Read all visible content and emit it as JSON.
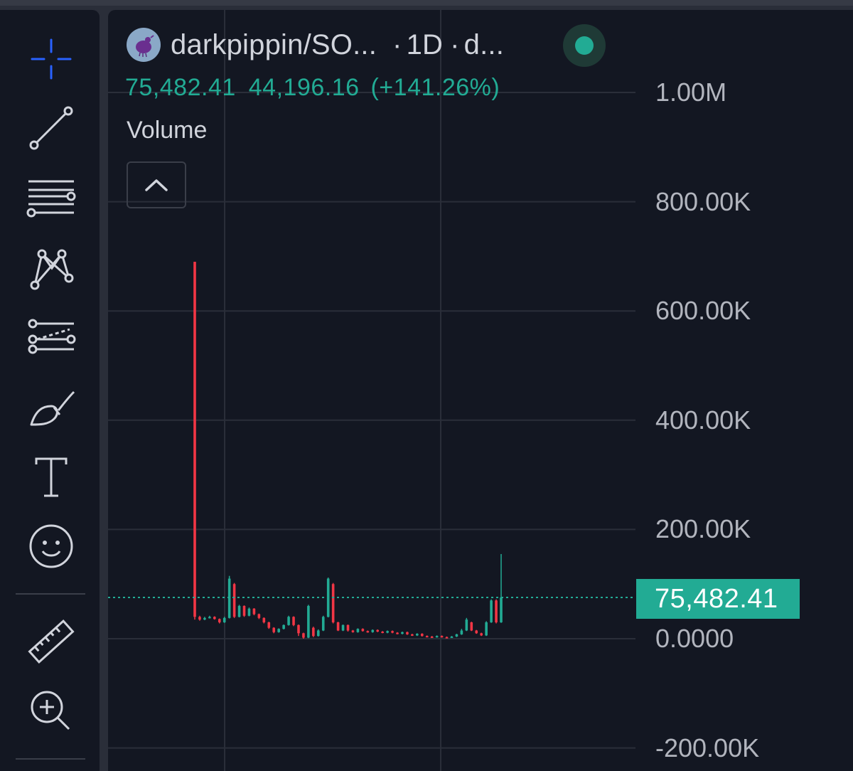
{
  "symbol": {
    "name": "darkpippin/SO...",
    "interval": "1D",
    "exchange": "d...",
    "logo_icon": "pippin-token-logo",
    "live_status": "live"
  },
  "legend": {
    "last_value": "75,482.41",
    "change": "44,196.16",
    "change_pct": "(+141.26%)",
    "indicator": "Volume"
  },
  "price_scale": {
    "labels": [
      "1.00M",
      "800.00K",
      "600.00K",
      "400.00K",
      "200.00K",
      "0.0000",
      "-200.00K"
    ],
    "last_price_tag": "75,482.41"
  },
  "toolbar": {
    "tools": [
      "crosshair-icon",
      "trend-line-icon",
      "horizontal-lines-icon",
      "pattern-icon",
      "forecast-icon",
      "brush-icon",
      "text-icon",
      "emoji-icon",
      "ruler-icon",
      "zoom-in-icon"
    ]
  },
  "colors": {
    "background": "#131722",
    "up": "#22ab94",
    "down": "#f23645",
    "accent": "#2962ff",
    "text": "#d1d4dc"
  },
  "chart_data": {
    "type": "candlestick",
    "ylim": [
      -200000,
      1000000
    ],
    "last_value": 75482.41,
    "series": [
      {
        "dir": "down",
        "o": 690000,
        "c": 40000,
        "h": 690000,
        "l": 35000
      },
      {
        "dir": "down",
        "o": 40000,
        "c": 35000,
        "h": 42000,
        "l": 33000
      },
      {
        "dir": "up",
        "o": 35000,
        "c": 38000,
        "h": 40000,
        "l": 34000
      },
      {
        "dir": "up",
        "o": 38000,
        "c": 40000,
        "h": 42000,
        "l": 37000
      },
      {
        "dir": "down",
        "o": 40000,
        "c": 36000,
        "h": 41000,
        "l": 35000
      },
      {
        "dir": "down",
        "o": 36000,
        "c": 30000,
        "h": 37000,
        "l": 28000
      },
      {
        "dir": "up",
        "o": 30000,
        "c": 38000,
        "h": 40000,
        "l": 29000
      },
      {
        "dir": "up",
        "o": 38000,
        "c": 110000,
        "h": 115000,
        "l": 37000
      },
      {
        "dir": "down",
        "o": 100000,
        "c": 40000,
        "h": 102000,
        "l": 38000
      },
      {
        "dir": "up",
        "o": 40000,
        "c": 60000,
        "h": 62000,
        "l": 39000
      },
      {
        "dir": "down",
        "o": 60000,
        "c": 42000,
        "h": 61000,
        "l": 40000
      },
      {
        "dir": "up",
        "o": 42000,
        "c": 55000,
        "h": 57000,
        "l": 41000
      },
      {
        "dir": "down",
        "o": 55000,
        "c": 45000,
        "h": 56000,
        "l": 43000
      },
      {
        "dir": "down",
        "o": 45000,
        "c": 38000,
        "h": 46000,
        "l": 36000
      },
      {
        "dir": "down",
        "o": 38000,
        "c": 30000,
        "h": 39000,
        "l": 28000
      },
      {
        "dir": "down",
        "o": 30000,
        "c": 20000,
        "h": 31000,
        "l": 18000
      },
      {
        "dir": "down",
        "o": 20000,
        "c": 12000,
        "h": 21000,
        "l": 10000
      },
      {
        "dir": "up",
        "o": 12000,
        "c": 18000,
        "h": 19000,
        "l": 11000
      },
      {
        "dir": "up",
        "o": 18000,
        "c": 25000,
        "h": 26000,
        "l": 17000
      },
      {
        "dir": "up",
        "o": 25000,
        "c": 40000,
        "h": 42000,
        "l": 24000
      },
      {
        "dir": "down",
        "o": 40000,
        "c": 25000,
        "h": 41000,
        "l": 23000
      },
      {
        "dir": "down",
        "o": 25000,
        "c": 10000,
        "h": 26000,
        "l": 5000
      },
      {
        "dir": "down",
        "o": 10000,
        "c": 2000,
        "h": 11000,
        "l": 0
      },
      {
        "dir": "up",
        "o": 2000,
        "c": 60000,
        "h": 62000,
        "l": 1000
      },
      {
        "dir": "down",
        "o": 20000,
        "c": 5000,
        "h": 22000,
        "l": 3000
      },
      {
        "dir": "up",
        "o": 5000,
        "c": 15000,
        "h": 17000,
        "l": 4000
      },
      {
        "dir": "up",
        "o": 15000,
        "c": 40000,
        "h": 42000,
        "l": 14000
      },
      {
        "dir": "up",
        "o": 40000,
        "c": 110000,
        "h": 112000,
        "l": 39000
      },
      {
        "dir": "down",
        "o": 100000,
        "c": 30000,
        "h": 102000,
        "l": 28000
      },
      {
        "dir": "down",
        "o": 30000,
        "c": 15000,
        "h": 31000,
        "l": 14000
      },
      {
        "dir": "up",
        "o": 15000,
        "c": 25000,
        "h": 26000,
        "l": 14000
      },
      {
        "dir": "down",
        "o": 25000,
        "c": 15000,
        "h": 26000,
        "l": 13000
      },
      {
        "dir": "down",
        "o": 15000,
        "c": 12000,
        "h": 16000,
        "l": 11000
      },
      {
        "dir": "up",
        "o": 12000,
        "c": 18000,
        "h": 19000,
        "l": 11000
      },
      {
        "dir": "down",
        "o": 18000,
        "c": 14000,
        "h": 19000,
        "l": 13000
      },
      {
        "dir": "down",
        "o": 14000,
        "c": 12000,
        "h": 15000,
        "l": 11000
      },
      {
        "dir": "up",
        "o": 12000,
        "c": 16000,
        "h": 17000,
        "l": 11000
      },
      {
        "dir": "down",
        "o": 16000,
        "c": 13000,
        "h": 17000,
        "l": 12000
      },
      {
        "dir": "down",
        "o": 13000,
        "c": 11000,
        "h": 14000,
        "l": 10000
      },
      {
        "dir": "up",
        "o": 11000,
        "c": 14000,
        "h": 15000,
        "l": 10000
      },
      {
        "dir": "down",
        "o": 14000,
        "c": 11000,
        "h": 15000,
        "l": 10000
      },
      {
        "dir": "down",
        "o": 11000,
        "c": 9000,
        "h": 12000,
        "l": 8000
      },
      {
        "dir": "up",
        "o": 9000,
        "c": 12000,
        "h": 13000,
        "l": 8000
      },
      {
        "dir": "down",
        "o": 12000,
        "c": 8000,
        "h": 13000,
        "l": 7000
      },
      {
        "dir": "down",
        "o": 8000,
        "c": 6000,
        "h": 9000,
        "l": 5000
      },
      {
        "dir": "up",
        "o": 6000,
        "c": 9000,
        "h": 10000,
        "l": 5000
      },
      {
        "dir": "down",
        "o": 9000,
        "c": 5000,
        "h": 10000,
        "l": 4000
      },
      {
        "dir": "down",
        "o": 5000,
        "c": 4000,
        "h": 6000,
        "l": 3000
      },
      {
        "dir": "down",
        "o": 4000,
        "c": 3000,
        "h": 5000,
        "l": 2000
      },
      {
        "dir": "up",
        "o": 3000,
        "c": 5000,
        "h": 6000,
        "l": 2000
      },
      {
        "dir": "down",
        "o": 5000,
        "c": 3000,
        "h": 6000,
        "l": 2000
      },
      {
        "dir": "down",
        "o": 3000,
        "c": 2500,
        "h": 4000,
        "l": 1500
      },
      {
        "dir": "up",
        "o": 2500,
        "c": 4000,
        "h": 5000,
        "l": 2000
      },
      {
        "dir": "up",
        "o": 4000,
        "c": 8000,
        "h": 9000,
        "l": 3000
      },
      {
        "dir": "up",
        "o": 8000,
        "c": 15000,
        "h": 18000,
        "l": 7000
      },
      {
        "dir": "up",
        "o": 15000,
        "c": 35000,
        "h": 38000,
        "l": 14000
      },
      {
        "dir": "down",
        "o": 30000,
        "c": 15000,
        "h": 31000,
        "l": 14000
      },
      {
        "dir": "down",
        "o": 15000,
        "c": 10000,
        "h": 16000,
        "l": 9000
      },
      {
        "dir": "down",
        "o": 10000,
        "c": 6000,
        "h": 11000,
        "l": 5000
      },
      {
        "dir": "up",
        "o": 6000,
        "c": 30000,
        "h": 32000,
        "l": 5000
      },
      {
        "dir": "up",
        "o": 30000,
        "c": 70000,
        "h": 72000,
        "l": 29000
      },
      {
        "dir": "down",
        "o": 70000,
        "c": 30000,
        "h": 72000,
        "l": 28000
      },
      {
        "dir": "up",
        "o": 30000,
        "c": 75482,
        "h": 155000,
        "l": 29000
      }
    ]
  }
}
